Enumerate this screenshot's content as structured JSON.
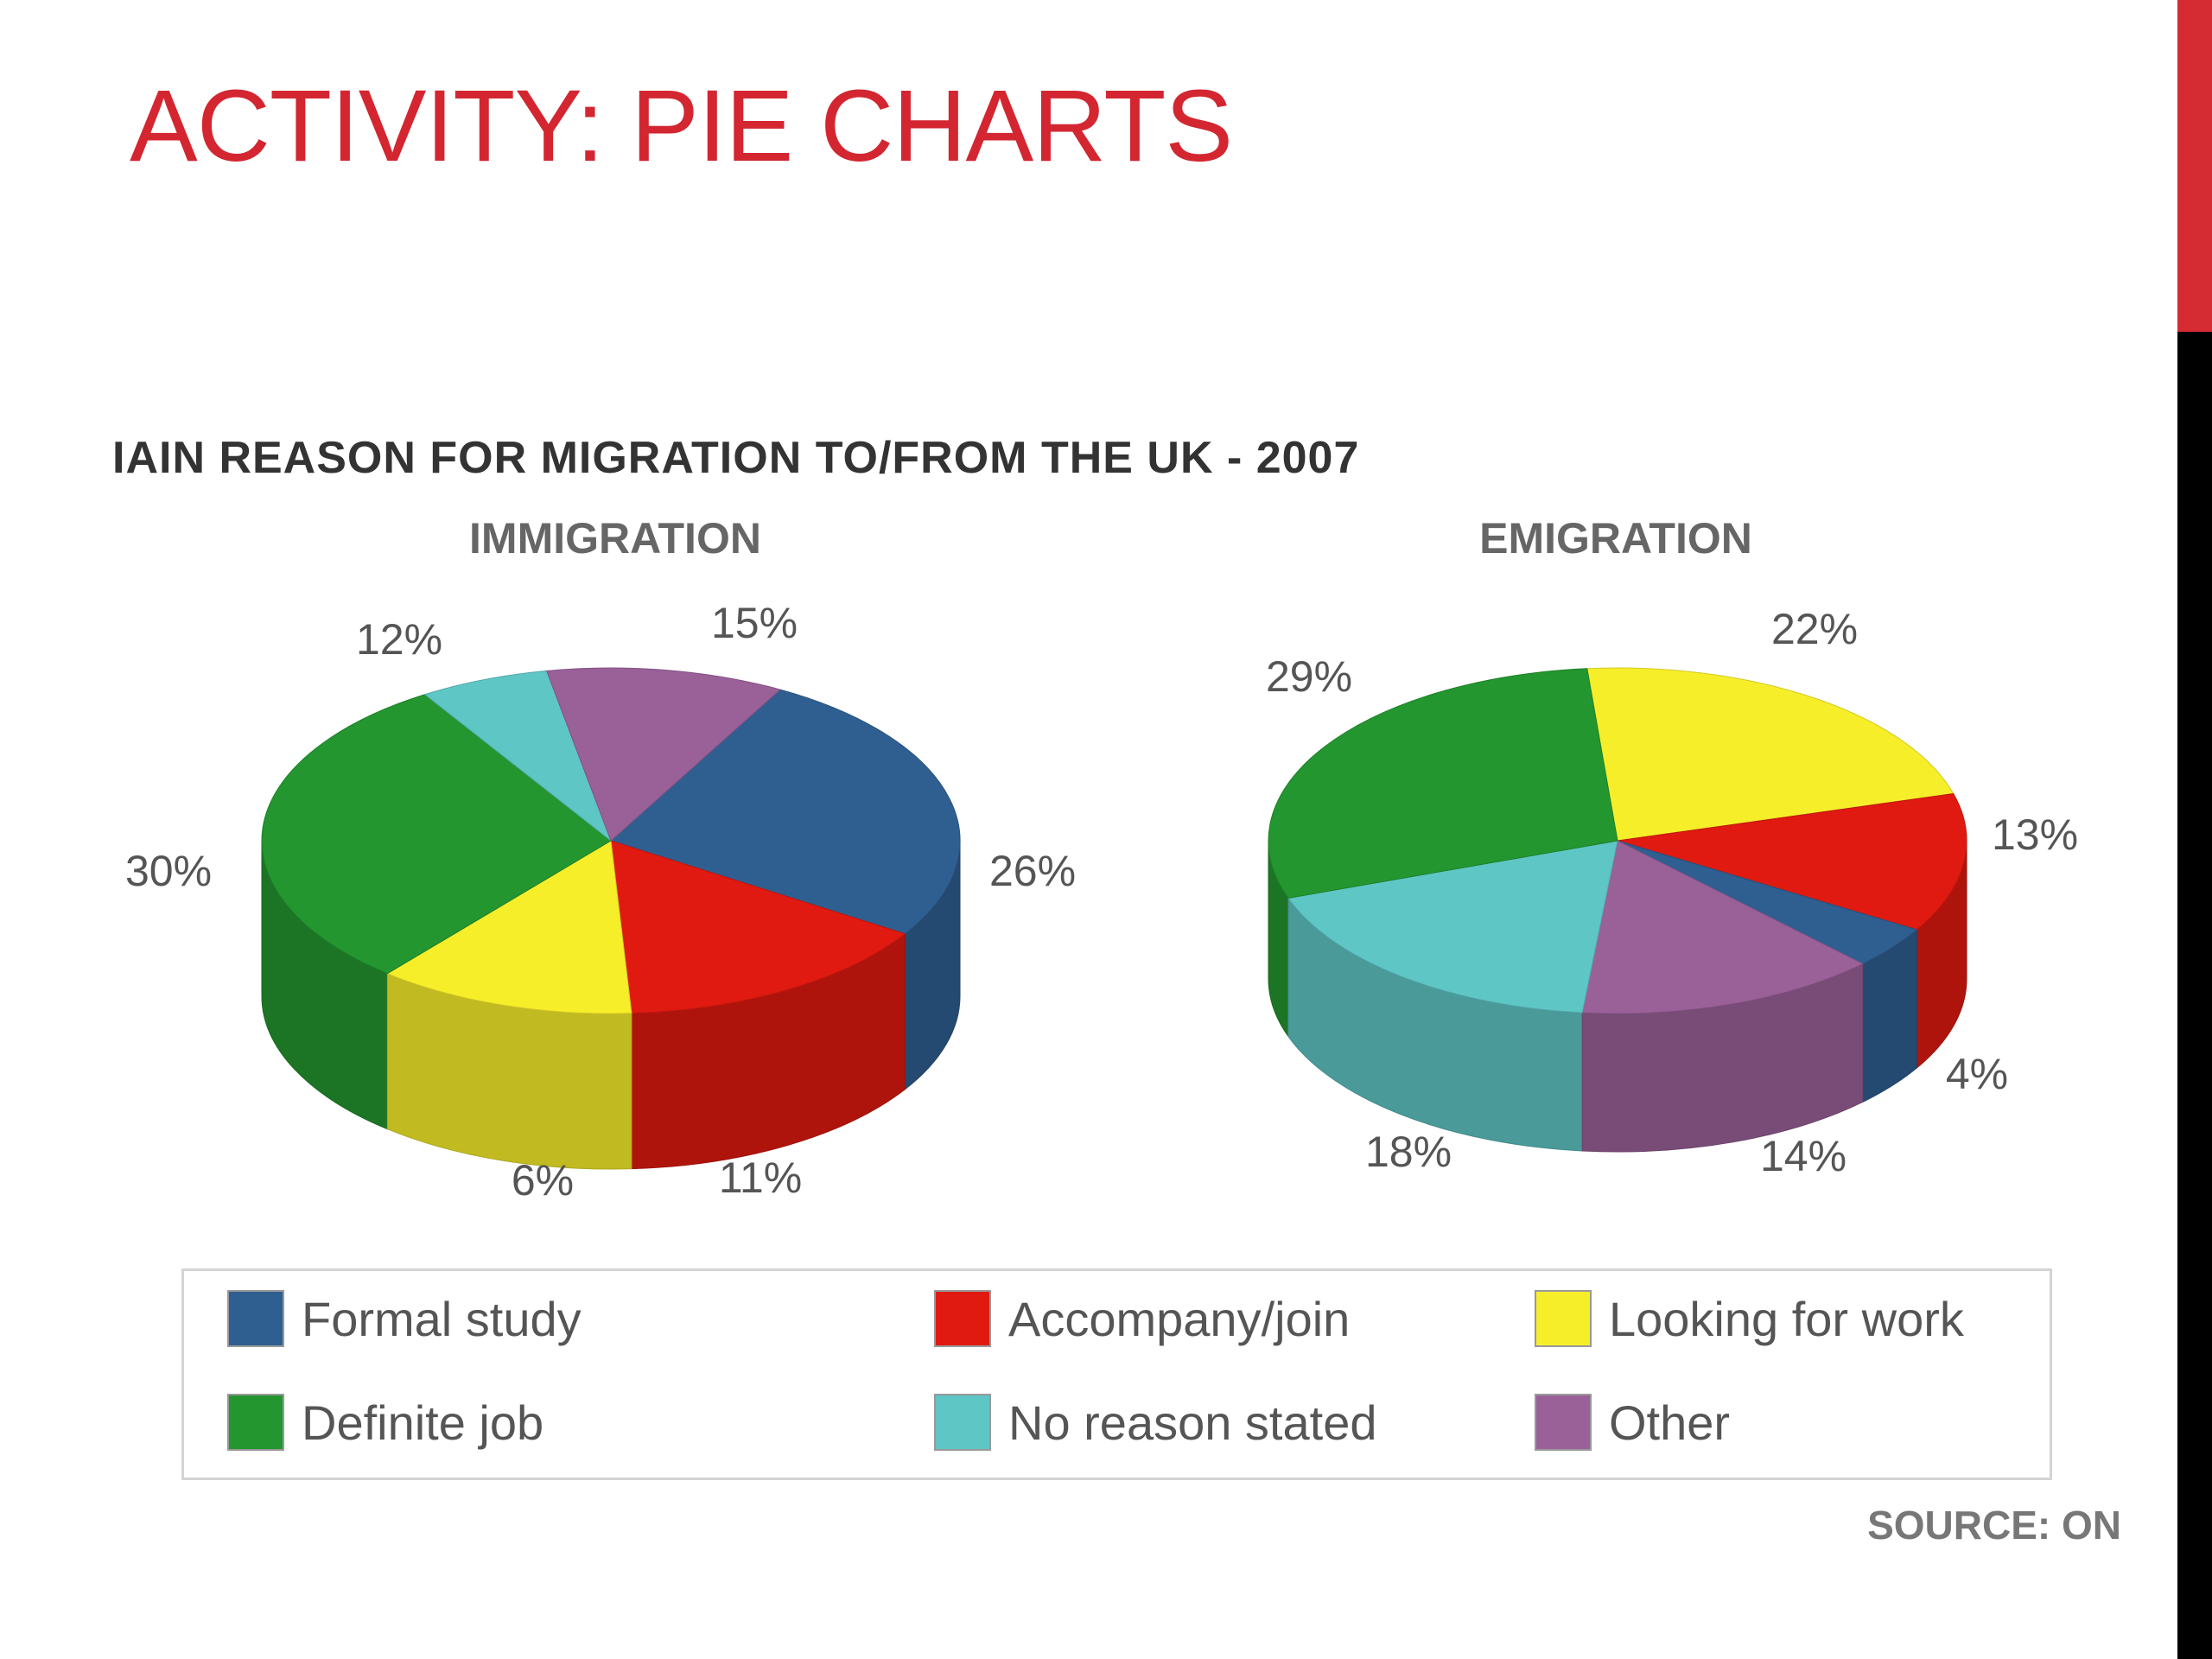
{
  "slide_title": "ACTIVITY: PIE CHARTS",
  "chart_title": "IAIN REASON FOR MIGRATION TO/FROM THE UK - 2007",
  "source": "SOURCE: ON",
  "chart_data": [
    {
      "type": "pie",
      "title": "IMMIGRATION",
      "categories": [
        "Formal study",
        "Accompany/join",
        "Looking for work",
        "Definite job",
        "No reason stated",
        "Other"
      ],
      "values": [
        26,
        15,
        12,
        30,
        6,
        11
      ],
      "labels": [
        "26%",
        "15%",
        "12%",
        "30%",
        "6%",
        "11%"
      ]
    },
    {
      "type": "pie",
      "title": "EMIGRATION",
      "categories": [
        "Looking for work",
        "Accompany/join",
        "Formal study",
        "Other",
        "No reason stated",
        "Definite job"
      ],
      "values": [
        22,
        13,
        4,
        14,
        18,
        29
      ],
      "labels": [
        "22%",
        "13%",
        "4%",
        "14%",
        "18%",
        "29%"
      ]
    }
  ],
  "legend": {
    "placement": "bottom",
    "items": [
      {
        "label": "Formal study",
        "color": "#2f5f91"
      },
      {
        "label": "Accompany/join",
        "color": "#e01a10"
      },
      {
        "label": "Looking for work",
        "color": "#f7ee2a"
      },
      {
        "label": "Definite job",
        "color": "#23962f"
      },
      {
        "label": "No reason stated",
        "color": "#5fc6c6"
      },
      {
        "label": "Other",
        "color": "#9a6199"
      }
    ]
  },
  "colors": {
    "Formal study": "#2f5f91",
    "Accompany/join": "#e01a10",
    "Looking for work": "#f7ee2a",
    "Definite job": "#23962f",
    "No reason stated": "#5fc6c6",
    "Other": "#9a6199",
    "title_red": "#d32630"
  }
}
